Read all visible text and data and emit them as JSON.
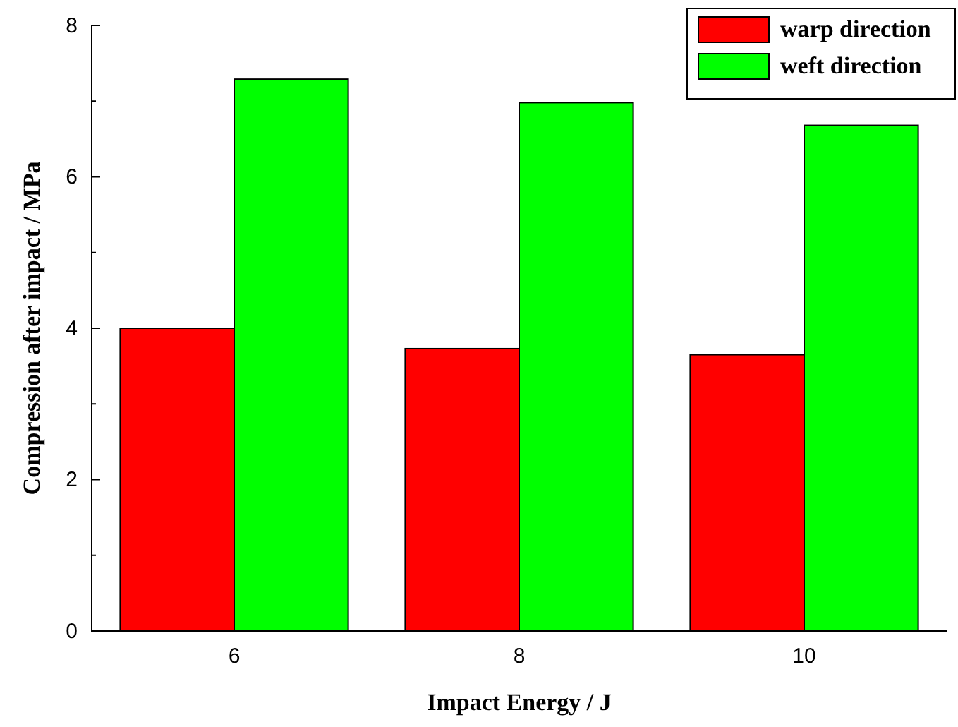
{
  "chart_data": {
    "type": "bar",
    "xlabel": "Impact Energy / J",
    "ylabel": "Compression after impact / MPa",
    "categories": [
      "6",
      "8",
      "10"
    ],
    "series": [
      {
        "name": "warp direction",
        "color": "#ff0000",
        "values": [
          4.0,
          3.73,
          3.65
        ]
      },
      {
        "name": "weft direction",
        "color": "#00ff00",
        "values": [
          7.29,
          6.98,
          6.68
        ]
      }
    ],
    "ylim": [
      0,
      8
    ],
    "yticks": [
      0,
      {
        "value": 1,
        "label": null
      },
      2,
      {
        "value": 3,
        "label": null
      },
      4,
      {
        "value": 5,
        "label": null
      },
      6,
      {
        "value": 7,
        "label": null
      },
      8
    ],
    "grid": false,
    "legend": "top right"
  }
}
